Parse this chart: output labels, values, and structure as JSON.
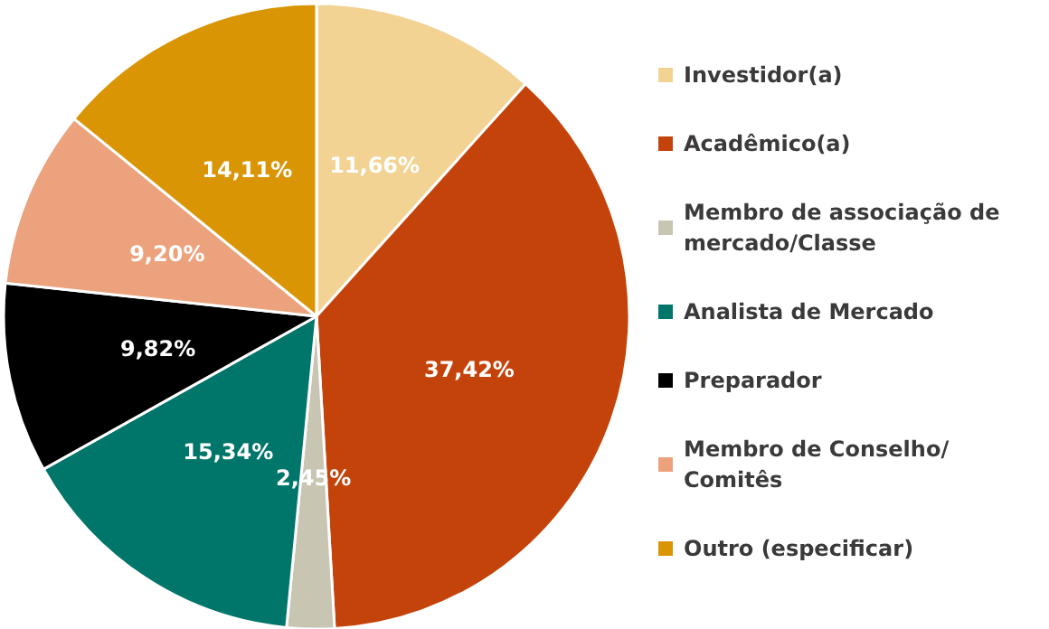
{
  "chart_data": {
    "type": "pie",
    "categories": [
      "Investidor(a)",
      "Acadêmico(a)",
      "Membro de associação de mercado/Classe",
      "Analista de Mercado",
      "Preparador",
      "Membro de Conselho/Comitês",
      "Outro (especificar)"
    ],
    "values": [
      11.66,
      37.42,
      2.45,
      15.34,
      9.82,
      9.2,
      14.11
    ],
    "value_labels": [
      "11,66%",
      "37,42%",
      "2,45%",
      "15,34%",
      "9,82%",
      "9,20%",
      "14,11%"
    ],
    "colors": [
      "#f3d394",
      "#c4430a",
      "#c9c5b3",
      "#00766b",
      "#000000",
      "#eba27d",
      "#da9505"
    ],
    "legend": "right"
  }
}
